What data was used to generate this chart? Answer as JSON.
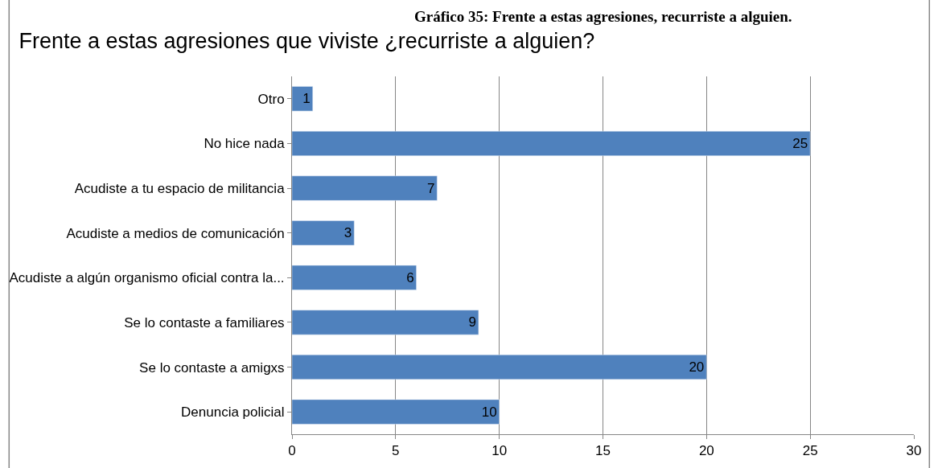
{
  "chart_data": {
    "type": "bar",
    "orientation": "horizontal",
    "title": "Frente a estas agresiones que viviste ¿recurriste a alguien?",
    "annotations": [
      "Gráfico 35: Frente a estas agresiones, recurriste a alguien."
    ],
    "categories": [
      "Otro",
      "No hice nada",
      "Acudiste a tu espacio de militancia",
      "Acudiste a medios de comunicación",
      "Acudiste a algún organismo oficial contra la...",
      "Se lo contaste a familiares",
      "Se lo contaste a amigxs",
      "Denuncia policial"
    ],
    "values": [
      1,
      25,
      7,
      3,
      6,
      9,
      20,
      10
    ],
    "color": "#4f81bd",
    "data_labels": true,
    "xlim": [
      0,
      30
    ],
    "xticks": [
      0,
      5,
      10,
      15,
      20,
      25,
      30
    ],
    "grid": "x",
    "legend": false
  }
}
